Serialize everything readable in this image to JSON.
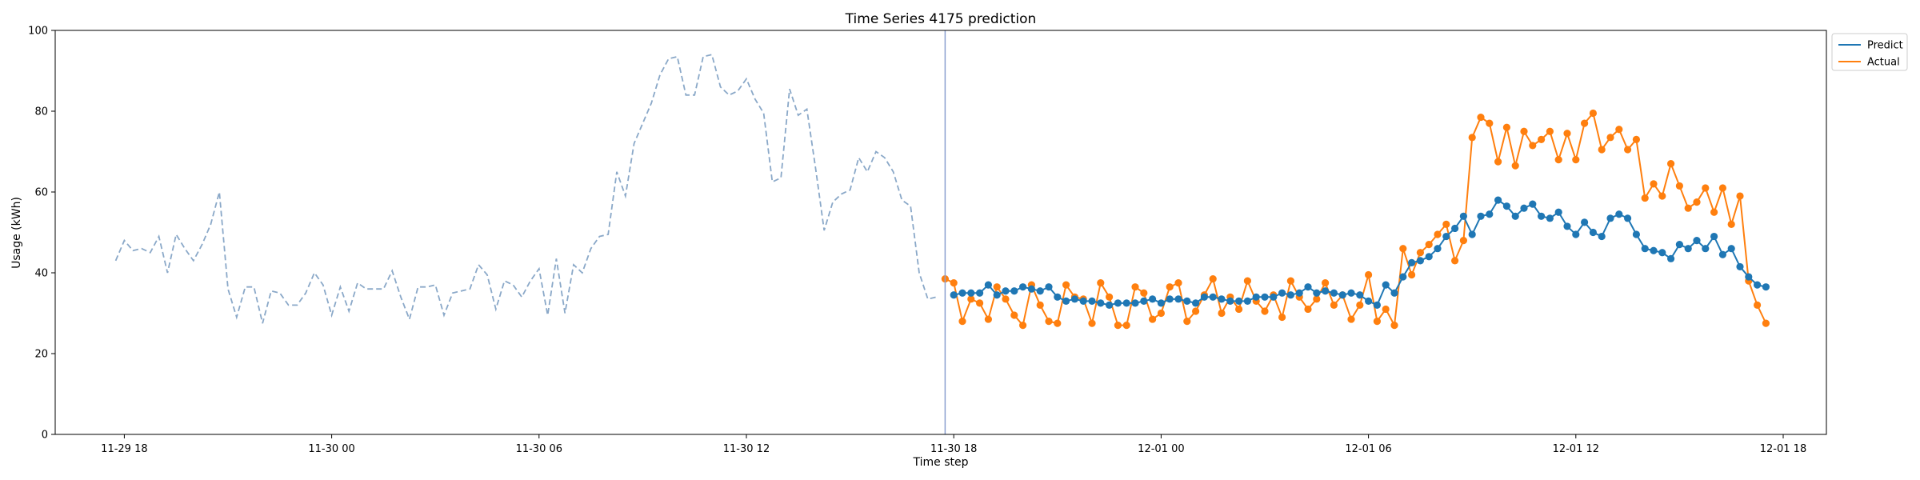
{
  "chart_data": {
    "type": "line",
    "title": "Time Series 4175 prediction",
    "xlabel": "Time step",
    "ylabel": "Usage (kWh)",
    "ylim": [
      0,
      100
    ],
    "yticks": [
      0,
      20,
      40,
      60,
      80,
      100
    ],
    "xlim": [
      "2024-11-29T16:00",
      "2024-12-01T19:15"
    ],
    "xticks": [
      {
        "t": "2024-11-29T18:00",
        "label": "11-29 18"
      },
      {
        "t": "2024-11-30T00:00",
        "label": "11-30 00"
      },
      {
        "t": "2024-11-30T06:00",
        "label": "11-30 06"
      },
      {
        "t": "2024-11-30T12:00",
        "label": "11-30 12"
      },
      {
        "t": "2024-11-30T18:00",
        "label": "11-30 18"
      },
      {
        "t": "2024-12-01T00:00",
        "label": "12-01 00"
      },
      {
        "t": "2024-12-01T06:00",
        "label": "12-01 06"
      },
      {
        "t": "2024-12-01T12:00",
        "label": "12-01 12"
      },
      {
        "t": "2024-12-01T18:00",
        "label": "12-01 18"
      }
    ],
    "interval_minutes": 15,
    "forecast_start": "2024-11-30T17:45",
    "legend_position": "upper-right-outside",
    "colors": {
      "history": "#8aa8c8",
      "predict": "#1f77b4",
      "actual": "#ff7f0e",
      "divider": "#8aa0d0"
    },
    "legend": [
      {
        "name": "Predict",
        "color": "#1f77b4"
      },
      {
        "name": "Actual",
        "color": "#ff7f0e"
      }
    ],
    "history": {
      "start": "2024-11-29T17:45",
      "values": [
        43,
        48,
        45.5,
        46,
        45,
        49,
        40,
        49.5,
        46,
        43,
        47,
        52,
        60,
        36,
        29,
        36.5,
        36.5,
        27.5,
        35.5,
        35,
        32,
        32,
        35,
        40,
        37,
        29.5,
        36.5,
        30.5,
        37.5,
        36,
        36,
        36,
        40.5,
        34,
        28.5,
        36.5,
        36.5,
        37,
        29.5,
        35,
        35.5,
        36,
        42,
        39.5,
        31,
        38,
        37,
        34,
        38,
        41,
        29.5,
        43.5,
        30,
        42,
        40,
        46,
        49,
        49.5,
        65,
        59,
        72,
        77,
        82,
        89,
        93,
        93.5,
        84,
        84,
        93.5,
        94,
        86,
        84,
        85,
        88,
        83,
        79.5,
        62.5,
        63.5,
        85.5,
        79,
        80.5,
        66,
        50.5,
        57.5,
        59.5,
        60.5,
        68.5,
        65,
        70,
        68.5,
        65,
        58,
        56.5,
        40,
        33.5,
        34
      ]
    },
    "series": [
      {
        "name": "Predict",
        "start": "2024-11-30T18:00",
        "values": [
          34.5,
          35,
          35,
          35,
          37,
          34.5,
          35.5,
          35.5,
          36.5,
          36,
          35.5,
          36.5,
          34,
          33,
          33.5,
          33,
          33,
          32.5,
          32,
          32.5,
          32.5,
          32.5,
          33,
          33.5,
          32.5,
          33.5,
          33.5,
          33,
          32.5,
          34,
          34,
          33.5,
          33,
          33,
          33,
          34,
          34,
          34,
          35,
          34.5,
          35,
          36.5,
          35,
          35.5,
          35,
          34.5,
          35,
          34.5,
          33,
          32,
          37,
          35,
          39,
          42.5,
          43,
          44,
          46,
          49,
          51,
          54,
          49.5,
          54,
          54.5,
          58,
          56.5,
          54,
          56,
          57,
          54,
          53.5,
          55,
          51.5,
          49.5,
          52.5,
          50,
          49,
          53.5,
          54.5,
          53.5,
          49.5,
          46,
          45.5,
          45,
          43.5,
          47,
          46,
          48,
          46,
          49,
          44.5,
          46,
          41.5,
          39,
          37,
          36.5
        ]
      },
      {
        "name": "Actual",
        "start": "2024-11-30T17:45",
        "values": [
          38.5,
          37.5,
          28,
          33.5,
          32.5,
          28.5,
          36.5,
          33.5,
          29.5,
          27,
          37,
          32,
          28,
          27.5,
          37,
          34,
          33.5,
          27.5,
          37.5,
          34,
          27,
          27,
          36.5,
          35,
          28.5,
          30,
          36.5,
          37.5,
          28,
          30.5,
          34.5,
          38.5,
          30,
          34,
          31,
          38,
          33,
          30.5,
          34.5,
          29,
          38,
          34,
          31,
          33.5,
          37.5,
          32,
          34.5,
          28.5,
          32,
          39.5,
          28,
          31,
          27,
          46,
          39.5,
          45,
          47,
          49.5,
          52,
          43,
          48,
          73.5,
          78.5,
          77,
          67.5,
          76,
          66.5,
          75,
          71.5,
          73,
          75,
          68,
          74.5,
          68,
          77,
          79.5,
          70.5,
          73.5,
          75.5,
          70.5,
          73,
          58.5,
          62,
          59,
          67,
          61.5,
          56,
          57.5,
          61,
          55,
          61,
          52,
          59,
          38,
          32,
          27.5
        ]
      }
    ]
  }
}
